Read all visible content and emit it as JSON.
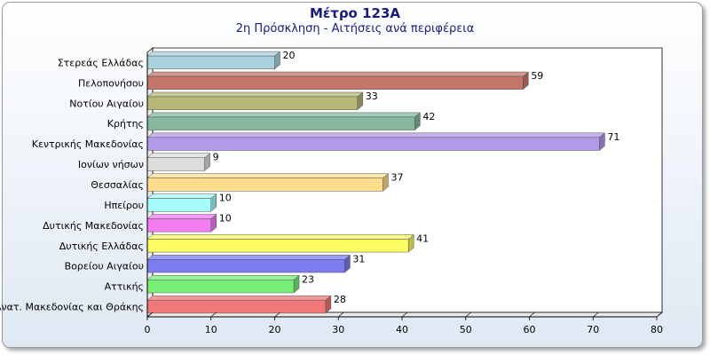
{
  "chart_data": {
    "type": "bar",
    "orientation": "horizontal",
    "title": "Μέτρο 123Α",
    "subtitle": "2η Πρόσκληση - Αιτήσεις ανά περιφέρεια",
    "categories": [
      "Στερεάς Ελλάδας",
      "Πελοπονήσου",
      "Νοτίου Αιγαίου",
      "Κρήτης",
      "Κεντρικής Μακεδονίας",
      "Ιονίων νήσων",
      "Θεσσαλίας",
      "Ηπείρου",
      "Δυτικής Μακεδονίας",
      "Δυτικής Ελλάδας",
      "Βορείου Αιγαίου",
      "Αττικής",
      "Ανατ. Μακεδονίας και Θράκης"
    ],
    "values": [
      20,
      59,
      33,
      42,
      71,
      9,
      37,
      10,
      10,
      41,
      31,
      23,
      28
    ],
    "colors": [
      "#a9d2dd",
      "#c5766b",
      "#b5b877",
      "#86b8a0",
      "#b39ae8",
      "#dcdcdc",
      "#ffdd8d",
      "#a6fbfb",
      "#f27ef2",
      "#fbfb62",
      "#7c7cf0",
      "#77ef77",
      "#f07878"
    ],
    "xlim": [
      0,
      80
    ],
    "xticks": [
      0,
      10,
      20,
      30,
      40,
      50,
      60,
      70,
      80
    ],
    "grid": false,
    "data_labels": true,
    "style": "3d"
  }
}
